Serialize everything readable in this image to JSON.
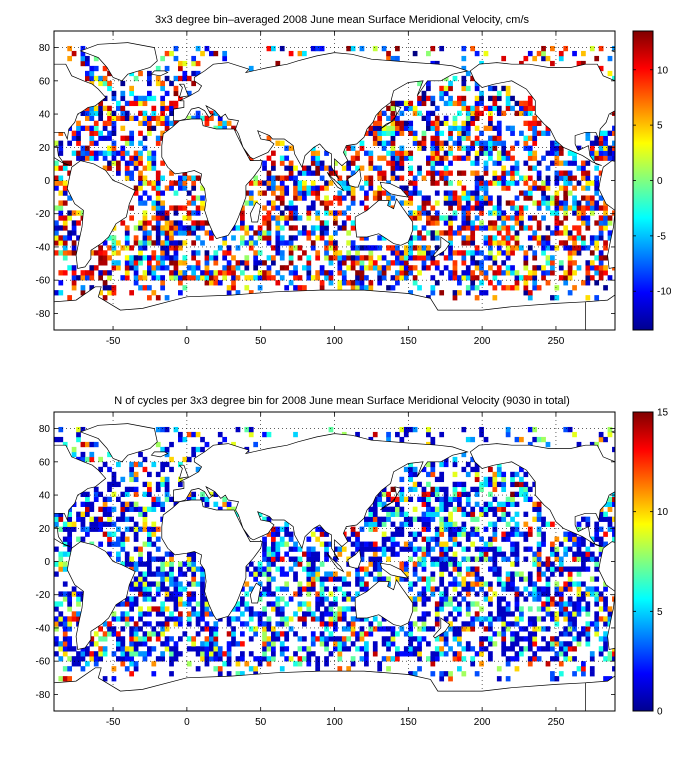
{
  "chart_data": [
    {
      "type": "heatmap",
      "title": "3x3 degree bin–averaged 2008 June mean Surface Meridional Velocity, cm/s",
      "xlabel": "",
      "ylabel": "",
      "xlim": [
        -90,
        290
      ],
      "ylim": [
        -90,
        90
      ],
      "x_ticks": [
        -50,
        0,
        50,
        100,
        150,
        200,
        250
      ],
      "y_ticks": [
        80,
        60,
        40,
        20,
        0,
        -20,
        -40,
        -60,
        -80
      ],
      "grid": true,
      "bin_size_deg": 3,
      "colorbar": {
        "colormap": "jet",
        "range": [
          -13.5,
          13.5
        ],
        "ticks": [
          10,
          5,
          0,
          -5,
          -10
        ]
      },
      "description_values": "Bin values mix strongly positive and negative velocities across the ocean basins; land bins empty."
    },
    {
      "type": "heatmap",
      "title": "N of cycles per 3x3 degree bin for 2008 June mean Surface Meridional Velocity (9030 in total)",
      "xlabel": "",
      "ylabel": "",
      "xlim": [
        -90,
        290
      ],
      "ylim": [
        -90,
        90
      ],
      "x_ticks": [
        -50,
        0,
        50,
        100,
        150,
        200,
        250
      ],
      "y_ticks": [
        80,
        60,
        40,
        20,
        0,
        -20,
        -40,
        -60,
        -80
      ],
      "grid": true,
      "bin_size_deg": 3,
      "colorbar": {
        "colormap": "jet",
        "range": [
          0,
          15
        ],
        "ticks": [
          15,
          10,
          5,
          0
        ]
      },
      "description_values": "Most ocean bins have low counts (1-5 cycles) with scattered higher counts in the North Pacific and western boundary regions."
    }
  ]
}
